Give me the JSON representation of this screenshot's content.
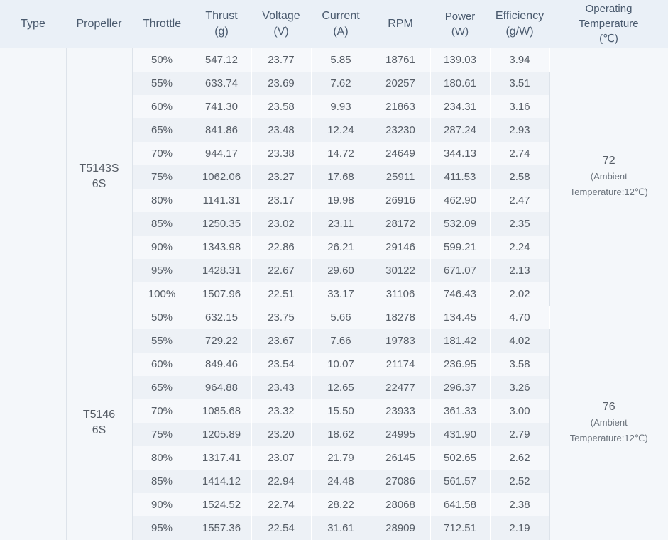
{
  "headers": {
    "type": "Type",
    "propeller": "Propeller",
    "throttle": "Throttle",
    "thrust": [
      "Thrust",
      "(g)"
    ],
    "voltage": [
      "Voltage",
      "(V)"
    ],
    "current": [
      "Current",
      "(A)"
    ],
    "rpm": "RPM",
    "power": [
      "Power",
      "(W)"
    ],
    "efficiency": [
      "Efficiency",
      "(g/W)"
    ],
    "temperature": [
      "Operating",
      "Temperature",
      "(℃)"
    ]
  },
  "groups": [
    {
      "propeller": [
        "T5143S",
        "6S"
      ],
      "temperature": "72",
      "ambient": [
        "(Ambient",
        "Temperature:12℃)"
      ],
      "rows": [
        [
          "50%",
          "547.12",
          "23.77",
          "5.85",
          "18761",
          "139.03",
          "3.94"
        ],
        [
          "55%",
          "633.74",
          "23.69",
          "7.62",
          "20257",
          "180.61",
          "3.51"
        ],
        [
          "60%",
          "741.30",
          "23.58",
          "9.93",
          "21863",
          "234.31",
          "3.16"
        ],
        [
          "65%",
          "841.86",
          "23.48",
          "12.24",
          "23230",
          "287.24",
          "2.93"
        ],
        [
          "70%",
          "944.17",
          "23.38",
          "14.72",
          "24649",
          "344.13",
          "2.74"
        ],
        [
          "75%",
          "1062.06",
          "23.27",
          "17.68",
          "25911",
          "411.53",
          "2.58"
        ],
        [
          "80%",
          "1141.31",
          "23.17",
          "19.98",
          "26916",
          "462.90",
          "2.47"
        ],
        [
          "85%",
          "1250.35",
          "23.02",
          "23.11",
          "28172",
          "532.09",
          "2.35"
        ],
        [
          "90%",
          "1343.98",
          "22.86",
          "26.21",
          "29146",
          "599.21",
          "2.24"
        ],
        [
          "95%",
          "1428.31",
          "22.67",
          "29.60",
          "30122",
          "671.07",
          "2.13"
        ],
        [
          "100%",
          "1507.96",
          "22.51",
          "33.17",
          "31106",
          "746.43",
          "2.02"
        ]
      ]
    },
    {
      "propeller": [
        "T5146",
        "6S"
      ],
      "temperature": "76",
      "ambient": [
        "(Ambient",
        "Temperature:12℃)"
      ],
      "rows": [
        [
          "50%",
          "632.15",
          "23.75",
          "5.66",
          "18278",
          "134.45",
          "4.70"
        ],
        [
          "55%",
          "729.22",
          "23.67",
          "7.66",
          "19783",
          "181.42",
          "4.02"
        ],
        [
          "60%",
          "849.46",
          "23.54",
          "10.07",
          "21174",
          "236.95",
          "3.58"
        ],
        [
          "65%",
          "964.88",
          "23.43",
          "12.65",
          "22477",
          "296.37",
          "3.26"
        ],
        [
          "70%",
          "1085.68",
          "23.32",
          "15.50",
          "23933",
          "361.33",
          "3.00"
        ],
        [
          "75%",
          "1205.89",
          "23.20",
          "18.62",
          "24995",
          "431.90",
          "2.79"
        ],
        [
          "80%",
          "1317.41",
          "23.07",
          "21.79",
          "26145",
          "502.65",
          "2.62"
        ],
        [
          "85%",
          "1414.12",
          "22.94",
          "24.48",
          "27086",
          "561.57",
          "2.52"
        ],
        [
          "90%",
          "1524.52",
          "22.74",
          "28.22",
          "28068",
          "641.58",
          "2.38"
        ],
        [
          "95%",
          "1557.36",
          "22.54",
          "31.61",
          "28909",
          "712.51",
          "2.19"
        ]
      ]
    }
  ]
}
